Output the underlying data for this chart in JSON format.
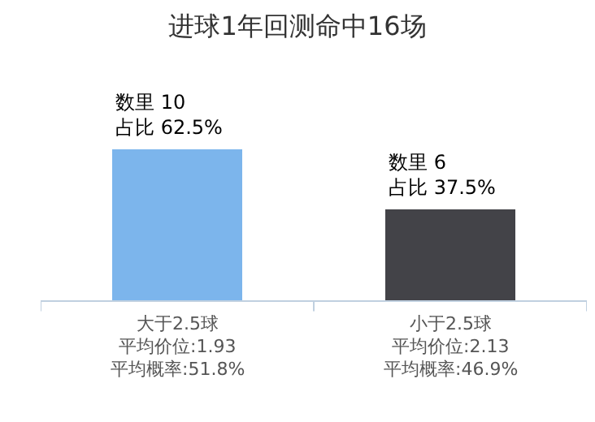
{
  "chart_data": {
    "type": "bar",
    "title": "进球1年回测命中16场",
    "categories": [
      "大于2.5球",
      "小于2.5球"
    ],
    "values": [
      10,
      6
    ],
    "colors": [
      "#7cb5ec",
      "#434348"
    ],
    "value_labels": [
      "数里 10\n占比 62.5%",
      "数里 6\n占比 37.5%"
    ],
    "annotations": [
      "平均价位:1.93",
      "平均概率:51.8%",
      "平均价位:2.13",
      "平均概率:46.9%"
    ]
  }
}
